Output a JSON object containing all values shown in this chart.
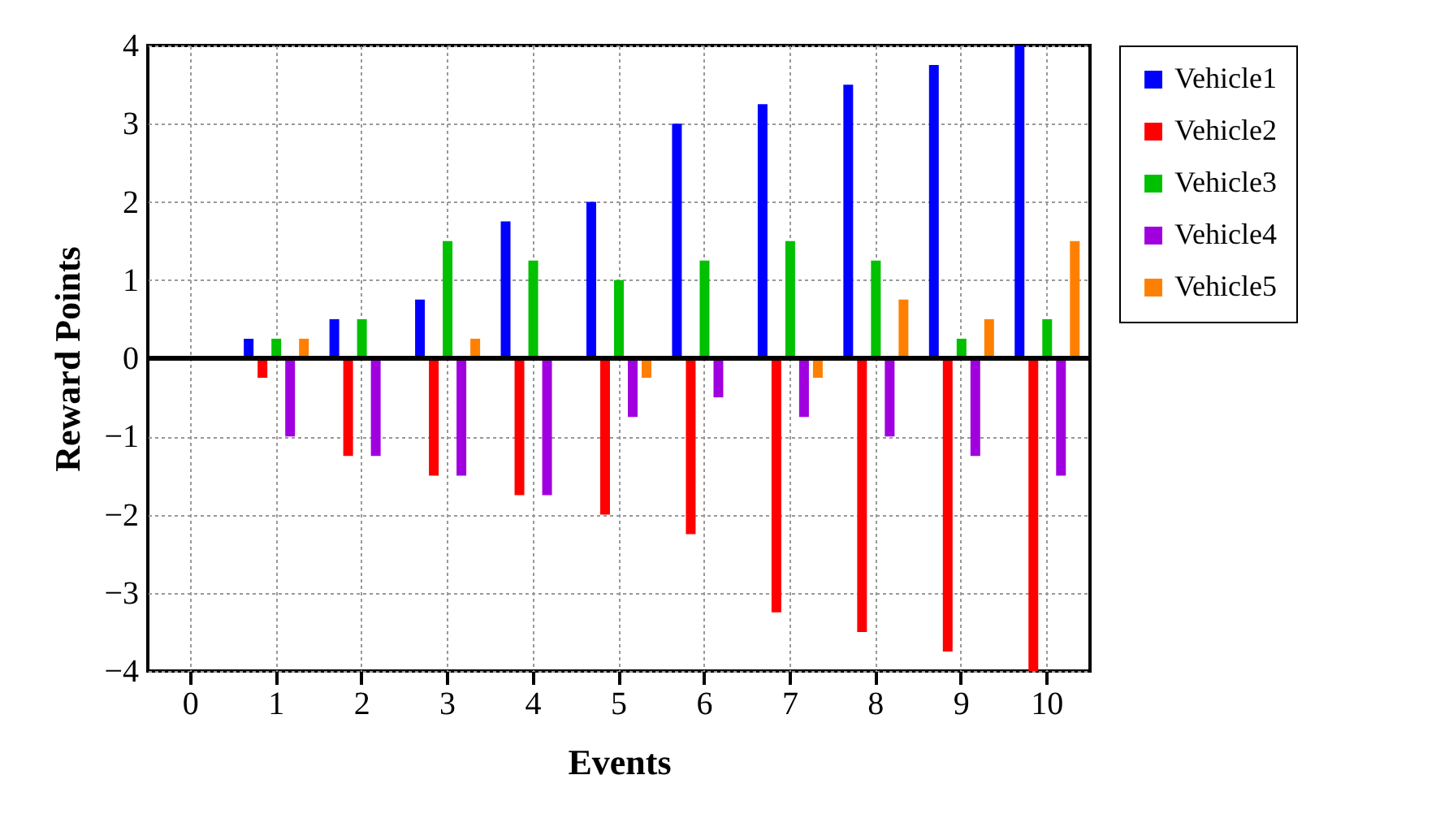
{
  "chart_data": {
    "type": "bar",
    "xlabel": "Events",
    "ylabel": "Reward Points",
    "categories": [
      "0",
      "1",
      "2",
      "3",
      "4",
      "5",
      "6",
      "7",
      "8",
      "9",
      "10"
    ],
    "ylim": [
      -4,
      4
    ],
    "yticks": [
      -4,
      -3,
      -2,
      -1,
      0,
      1,
      2,
      3,
      4
    ],
    "grid": true,
    "legend": "top right",
    "series": [
      {
        "name": "Vehicle1",
        "color": "#0000ff",
        "values": [
          null,
          0.25,
          0.5,
          0.75,
          1.75,
          2,
          3,
          3.25,
          3.5,
          3.75,
          4
        ]
      },
      {
        "name": "Vehicle2",
        "color": "#ff0000",
        "values": [
          null,
          -0.25,
          -1.25,
          -1.5,
          -1.75,
          -2,
          -2.25,
          -3.25,
          -3.5,
          -3.75,
          -4
        ]
      },
      {
        "name": "Vehicle3",
        "color": "#00c000",
        "values": [
          null,
          0.25,
          0.5,
          1.5,
          1.25,
          1,
          1.25,
          1.5,
          1.25,
          0.25,
          0.5
        ]
      },
      {
        "name": "Vehicle4",
        "color": "#a000e0",
        "values": [
          null,
          -1,
          -1.25,
          -1.5,
          -1.75,
          -0.75,
          -0.5,
          -0.75,
          -1,
          -1.25,
          -1.5
        ]
      },
      {
        "name": "Vehicle5",
        "color": "#ff8000",
        "values": [
          null,
          0.25,
          0,
          0.25,
          0,
          -0.25,
          0,
          -0.25,
          0.75,
          0.5,
          1.5
        ]
      }
    ]
  }
}
